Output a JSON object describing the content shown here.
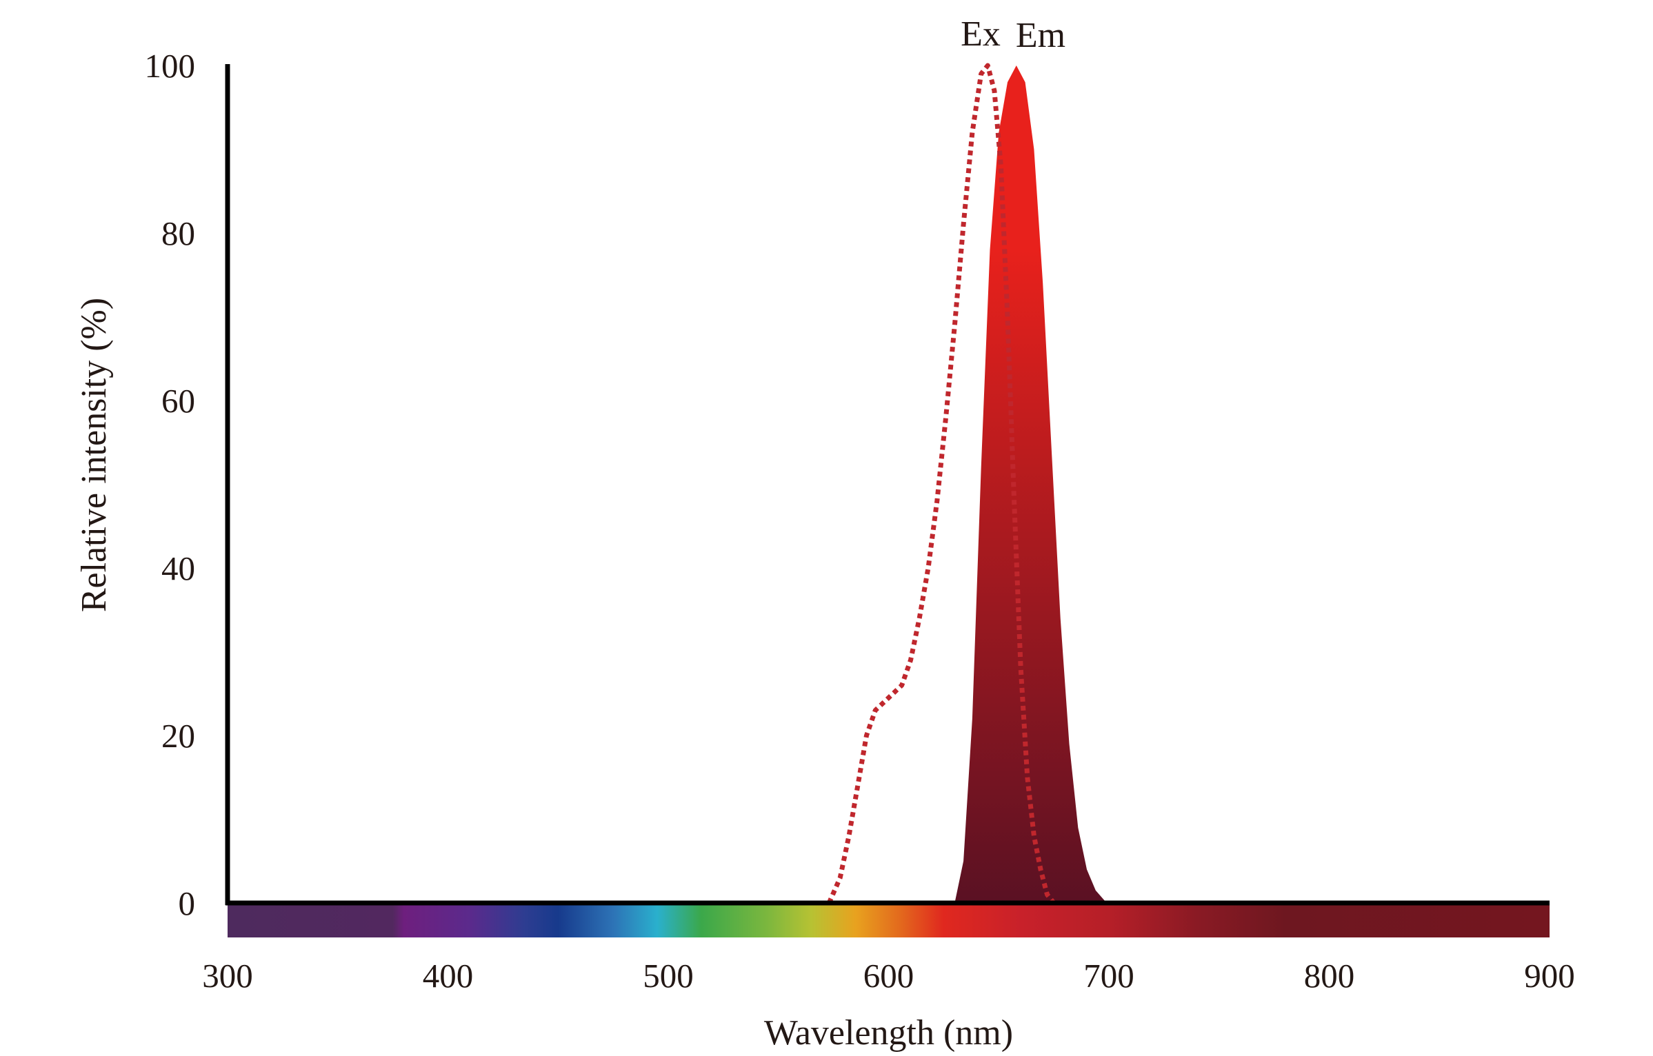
{
  "chart_data": {
    "type": "line",
    "title": "",
    "xlabel": "Wavelength (nm)",
    "ylabel": "Relative intensity (%)",
    "xlim": [
      300,
      900
    ],
    "ylim": [
      0,
      100
    ],
    "x_ticks": [
      "300",
      "400",
      "500",
      "600",
      "700",
      "800",
      "900"
    ],
    "y_ticks": [
      "0",
      "20",
      "40",
      "60",
      "80",
      "100"
    ],
    "grid": false,
    "legend": "none",
    "series": [
      {
        "name": "Ex",
        "style": "dotted",
        "color": "#c0272d",
        "x": [
          573,
          578,
          582,
          586,
          590,
          594,
          598,
          602,
          606,
          610,
          614,
          618,
          622,
          626,
          630,
          634,
          638,
          642,
          645,
          648,
          651,
          654,
          657,
          660,
          663,
          666,
          669,
          672,
          675
        ],
        "y": [
          0,
          3,
          8,
          14,
          20,
          23,
          24,
          25,
          26,
          29,
          34,
          40,
          48,
          58,
          69,
          81,
          92,
          99,
          100,
          97,
          88,
          70,
          48,
          28,
          15,
          8,
          4,
          1,
          0
        ]
      },
      {
        "name": "Em",
        "style": "filled",
        "color_top": "#e8211c",
        "color_bottom": "#5a1123",
        "x": [
          630,
          634,
          638,
          642,
          646,
          650,
          654,
          658,
          662,
          666,
          670,
          674,
          678,
          682,
          686,
          690,
          694,
          698,
          700
        ],
        "y": [
          0,
          5,
          22,
          52,
          78,
          92,
          98,
          100,
          98,
          90,
          74,
          54,
          34,
          19,
          9,
          4,
          1.5,
          0.3,
          0
        ]
      }
    ],
    "spectrum_bar": {
      "stops": [
        {
          "nm": 300,
          "color": "#4e2a5e"
        },
        {
          "nm": 375,
          "color": "#52285f"
        },
        {
          "nm": 380,
          "color": "#6e1f7e"
        },
        {
          "nm": 410,
          "color": "#5b2a8c"
        },
        {
          "nm": 435,
          "color": "#2d3d91"
        },
        {
          "nm": 450,
          "color": "#173a8c"
        },
        {
          "nm": 475,
          "color": "#2d73b6"
        },
        {
          "nm": 495,
          "color": "#2ab0cd"
        },
        {
          "nm": 515,
          "color": "#3ba84a"
        },
        {
          "nm": 545,
          "color": "#7cb73e"
        },
        {
          "nm": 565,
          "color": "#b7c233"
        },
        {
          "nm": 585,
          "color": "#e8a21f"
        },
        {
          "nm": 605,
          "color": "#e36a1d"
        },
        {
          "nm": 625,
          "color": "#e0281f"
        },
        {
          "nm": 660,
          "color": "#c8212a"
        },
        {
          "nm": 700,
          "color": "#b61f28"
        },
        {
          "nm": 740,
          "color": "#8a1a24"
        },
        {
          "nm": 780,
          "color": "#6e1720"
        },
        {
          "nm": 900,
          "color": "#74161f"
        }
      ]
    }
  }
}
